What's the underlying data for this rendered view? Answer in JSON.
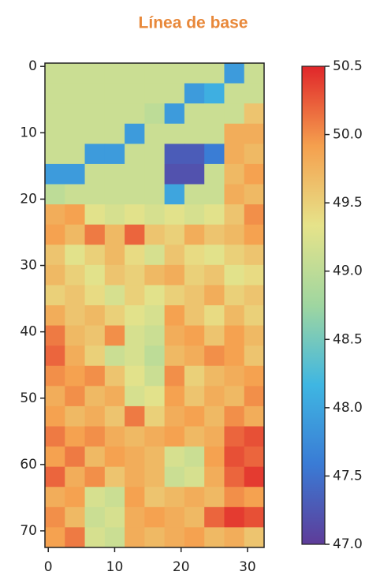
{
  "chart_data": {
    "type": "heatmap",
    "title": "Línea de base",
    "title_color": "#e8883a",
    "xlim": [
      -0.5,
      32.5
    ],
    "ylim": [
      72.5,
      -0.5
    ],
    "xticks": [
      0,
      10,
      20,
      30
    ],
    "yticks": [
      0,
      10,
      20,
      30,
      40,
      50,
      60,
      70
    ],
    "clim": [
      47.0,
      50.5
    ],
    "colormap": [
      "#5e3c99",
      "#3a7bd5",
      "#3fb6e2",
      "#9fd6a0",
      "#e6e38a",
      "#f5a04e",
      "#e0262a"
    ],
    "cticks": [
      {
        "value": 47.0,
        "label": "47.0"
      },
      47.5,
      {
        "value": 48.0,
        "label": "48.0"
      },
      48.5,
      {
        "value": 49.0,
        "label": "49.0"
      },
      49.5,
      {
        "value": 50.0,
        "label": "50.0"
      },
      50.5
    ],
    "z": [
      [
        49.1,
        49.1,
        49.1,
        49.1,
        49.1,
        49.1,
        49.1,
        49.1,
        49.1,
        47.9,
        49.1
      ],
      [
        49.1,
        49.1,
        49.1,
        49.1,
        49.1,
        49.1,
        49.1,
        47.9,
        48.1,
        49.1,
        49.1
      ],
      [
        49.1,
        49.1,
        49.1,
        49.1,
        49.1,
        49.0,
        47.9,
        49.1,
        49.1,
        49.1,
        49.6
      ],
      [
        49.1,
        49.1,
        49.1,
        49.1,
        47.9,
        49.1,
        49.1,
        49.1,
        49.1,
        49.8,
        49.8
      ],
      [
        49.1,
        49.1,
        47.9,
        47.9,
        49.1,
        49.1,
        47.3,
        47.3,
        47.6,
        49.8,
        49.7
      ],
      [
        47.9,
        47.9,
        49.1,
        49.1,
        49.1,
        49.1,
        47.2,
        47.2,
        49.1,
        49.7,
        49.9
      ],
      [
        49.0,
        49.1,
        49.1,
        49.1,
        49.1,
        49.1,
        48.0,
        49.1,
        49.1,
        49.8,
        49.7
      ],
      [
        49.8,
        49.9,
        49.3,
        49.2,
        49.3,
        49.2,
        49.3,
        49.2,
        49.3,
        49.6,
        50.0
      ],
      [
        49.9,
        49.7,
        50.1,
        49.7,
        50.2,
        49.6,
        49.5,
        49.8,
        49.6,
        49.7,
        49.9
      ],
      [
        49.6,
        49.3,
        49.5,
        49.7,
        49.4,
        49.2,
        49.6,
        49.4,
        49.3,
        49.5,
        49.6
      ],
      [
        49.7,
        49.5,
        49.3,
        49.6,
        49.5,
        49.7,
        49.8,
        49.5,
        49.6,
        49.3,
        49.4
      ],
      [
        49.5,
        49.6,
        49.4,
        49.2,
        49.5,
        49.3,
        49.5,
        49.6,
        49.8,
        49.5,
        49.6
      ],
      [
        49.8,
        49.6,
        49.7,
        49.5,
        49.3,
        49.2,
        49.9,
        49.6,
        49.4,
        49.7,
        49.5
      ],
      [
        50.1,
        49.7,
        49.6,
        50.0,
        49.2,
        49.1,
        49.8,
        49.9,
        49.6,
        49.9,
        49.7
      ],
      [
        50.2,
        49.8,
        49.5,
        49.1,
        49.2,
        49.0,
        49.7,
        49.8,
        50.0,
        49.9,
        49.6
      ],
      [
        50.0,
        49.9,
        50.0,
        49.6,
        49.3,
        49.1,
        50.0,
        49.5,
        49.7,
        49.8,
        49.9
      ],
      [
        49.8,
        50.0,
        49.7,
        49.8,
        49.2,
        49.3,
        49.9,
        49.6,
        49.8,
        49.7,
        50.0
      ],
      [
        49.9,
        49.7,
        49.8,
        49.6,
        50.1,
        49.5,
        49.8,
        49.9,
        49.7,
        50.0,
        49.8
      ],
      [
        50.1,
        49.9,
        50.0,
        49.8,
        49.7,
        49.8,
        49.9,
        49.7,
        49.8,
        50.2,
        50.3
      ],
      [
        49.9,
        50.1,
        49.7,
        49.9,
        49.8,
        49.7,
        49.2,
        49.1,
        49.9,
        50.3,
        50.2
      ],
      [
        50.2,
        49.8,
        50.0,
        49.6,
        49.8,
        49.7,
        49.1,
        49.2,
        49.8,
        50.2,
        50.4
      ],
      [
        49.8,
        49.9,
        49.2,
        49.1,
        49.9,
        49.6,
        49.7,
        49.8,
        49.7,
        50.0,
        49.9
      ],
      [
        50.0,
        49.7,
        49.1,
        49.2,
        49.8,
        49.9,
        49.8,
        49.7,
        50.2,
        50.4,
        50.3
      ],
      [
        49.9,
        50.1,
        49.2,
        49.1,
        49.8,
        49.7,
        49.8,
        49.9,
        49.7,
        49.8,
        49.6
      ]
    ]
  }
}
